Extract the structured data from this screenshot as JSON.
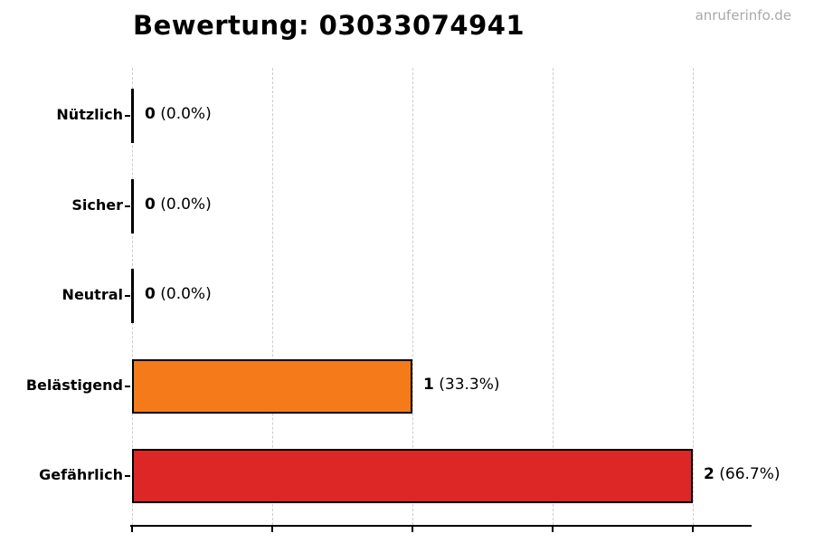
{
  "header": {
    "title": "Bewertung: 03033074941",
    "watermark": "anruferinfo.de"
  },
  "colors": {
    "grid": "#cdcdcd",
    "axis": "#000000",
    "zero_bar": "#000000",
    "watermark": "#a9a9a9",
    "belastigend_orange": "#f57a1a",
    "gefahrlich_red": "#dd2726"
  },
  "chart_data": {
    "type": "bar",
    "orientation": "horizontal",
    "title": "Bewertung: 03033074941",
    "categories": [
      "Nützlich",
      "Sicher",
      "Neutral",
      "Belästigend",
      "Gefährlich"
    ],
    "values": [
      0,
      0,
      0,
      1,
      2
    ],
    "value_labels": [
      {
        "count": "0",
        "pct": "(0.0%)"
      },
      {
        "count": "0",
        "pct": "(0.0%)"
      },
      {
        "count": "0",
        "pct": "(0.0%)"
      },
      {
        "count": "1",
        "pct": "(33.3%)"
      },
      {
        "count": "2",
        "pct": "(66.7%)"
      }
    ],
    "bar_colors": [
      "#000000",
      "#000000",
      "#000000",
      "#f57a1a",
      "#dd2726"
    ],
    "xlim": [
      0,
      2.2
    ],
    "x_gridlines": [
      0,
      0.5,
      1,
      1.5,
      2
    ],
    "x_tick_labels": [],
    "grid_style": "dashed-vertical",
    "legend": "none",
    "xlabel": "",
    "ylabel": ""
  }
}
